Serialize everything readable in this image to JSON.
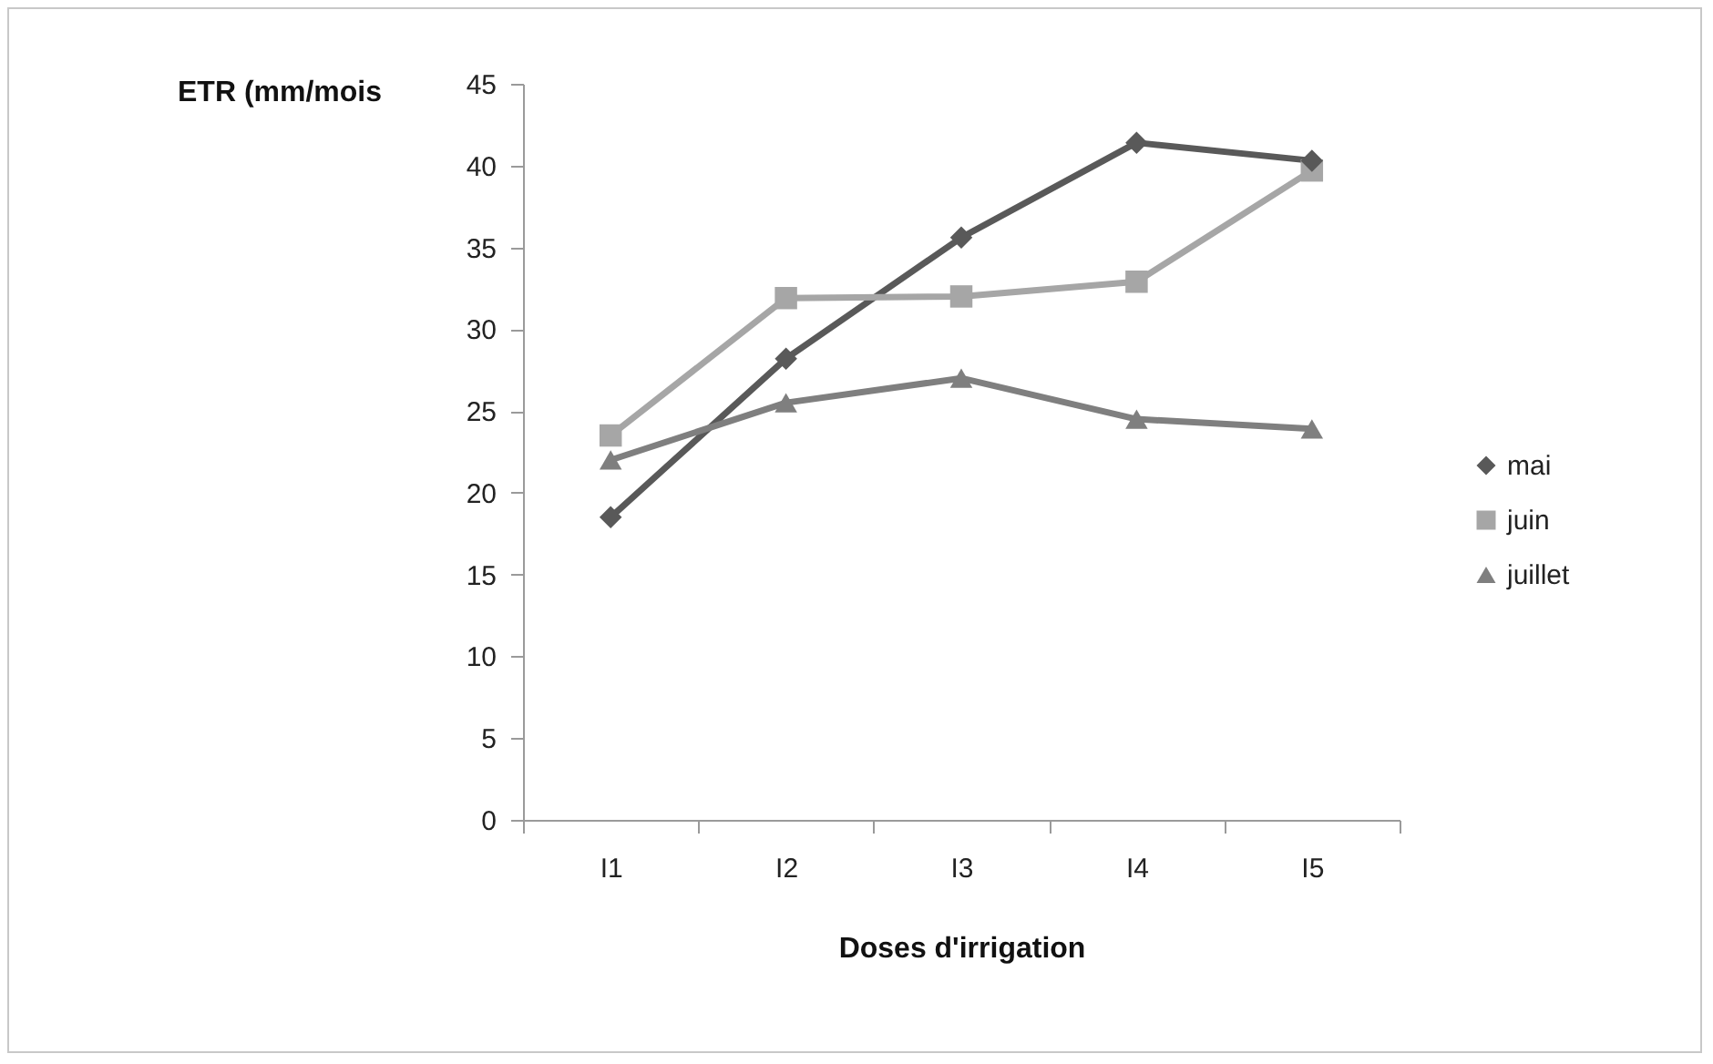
{
  "chart_data": {
    "type": "line",
    "xlabel": "Doses d'irrigation",
    "ylabel": "ETR (mm/mois",
    "categories": [
      "I1",
      "I2",
      "I3",
      "I4",
      "I5"
    ],
    "series": [
      {
        "name": "mai",
        "color": "#595959",
        "marker": "diamond",
        "values": [
          18.5,
          28.2,
          35.6,
          41.4,
          40.3
        ]
      },
      {
        "name": "juin",
        "color": "#a6a6a6",
        "marker": "square",
        "values": [
          23.5,
          31.9,
          32.0,
          32.9,
          39.7
        ]
      },
      {
        "name": "juillet",
        "color": "#7f7f7f",
        "marker": "triangle",
        "values": [
          22.0,
          25.5,
          27.0,
          24.5,
          23.9
        ]
      }
    ],
    "ylim": [
      0,
      45
    ],
    "yticks": [
      0,
      5,
      10,
      15,
      20,
      25,
      30,
      35,
      40,
      45
    ],
    "grid": false,
    "legend": "right"
  }
}
